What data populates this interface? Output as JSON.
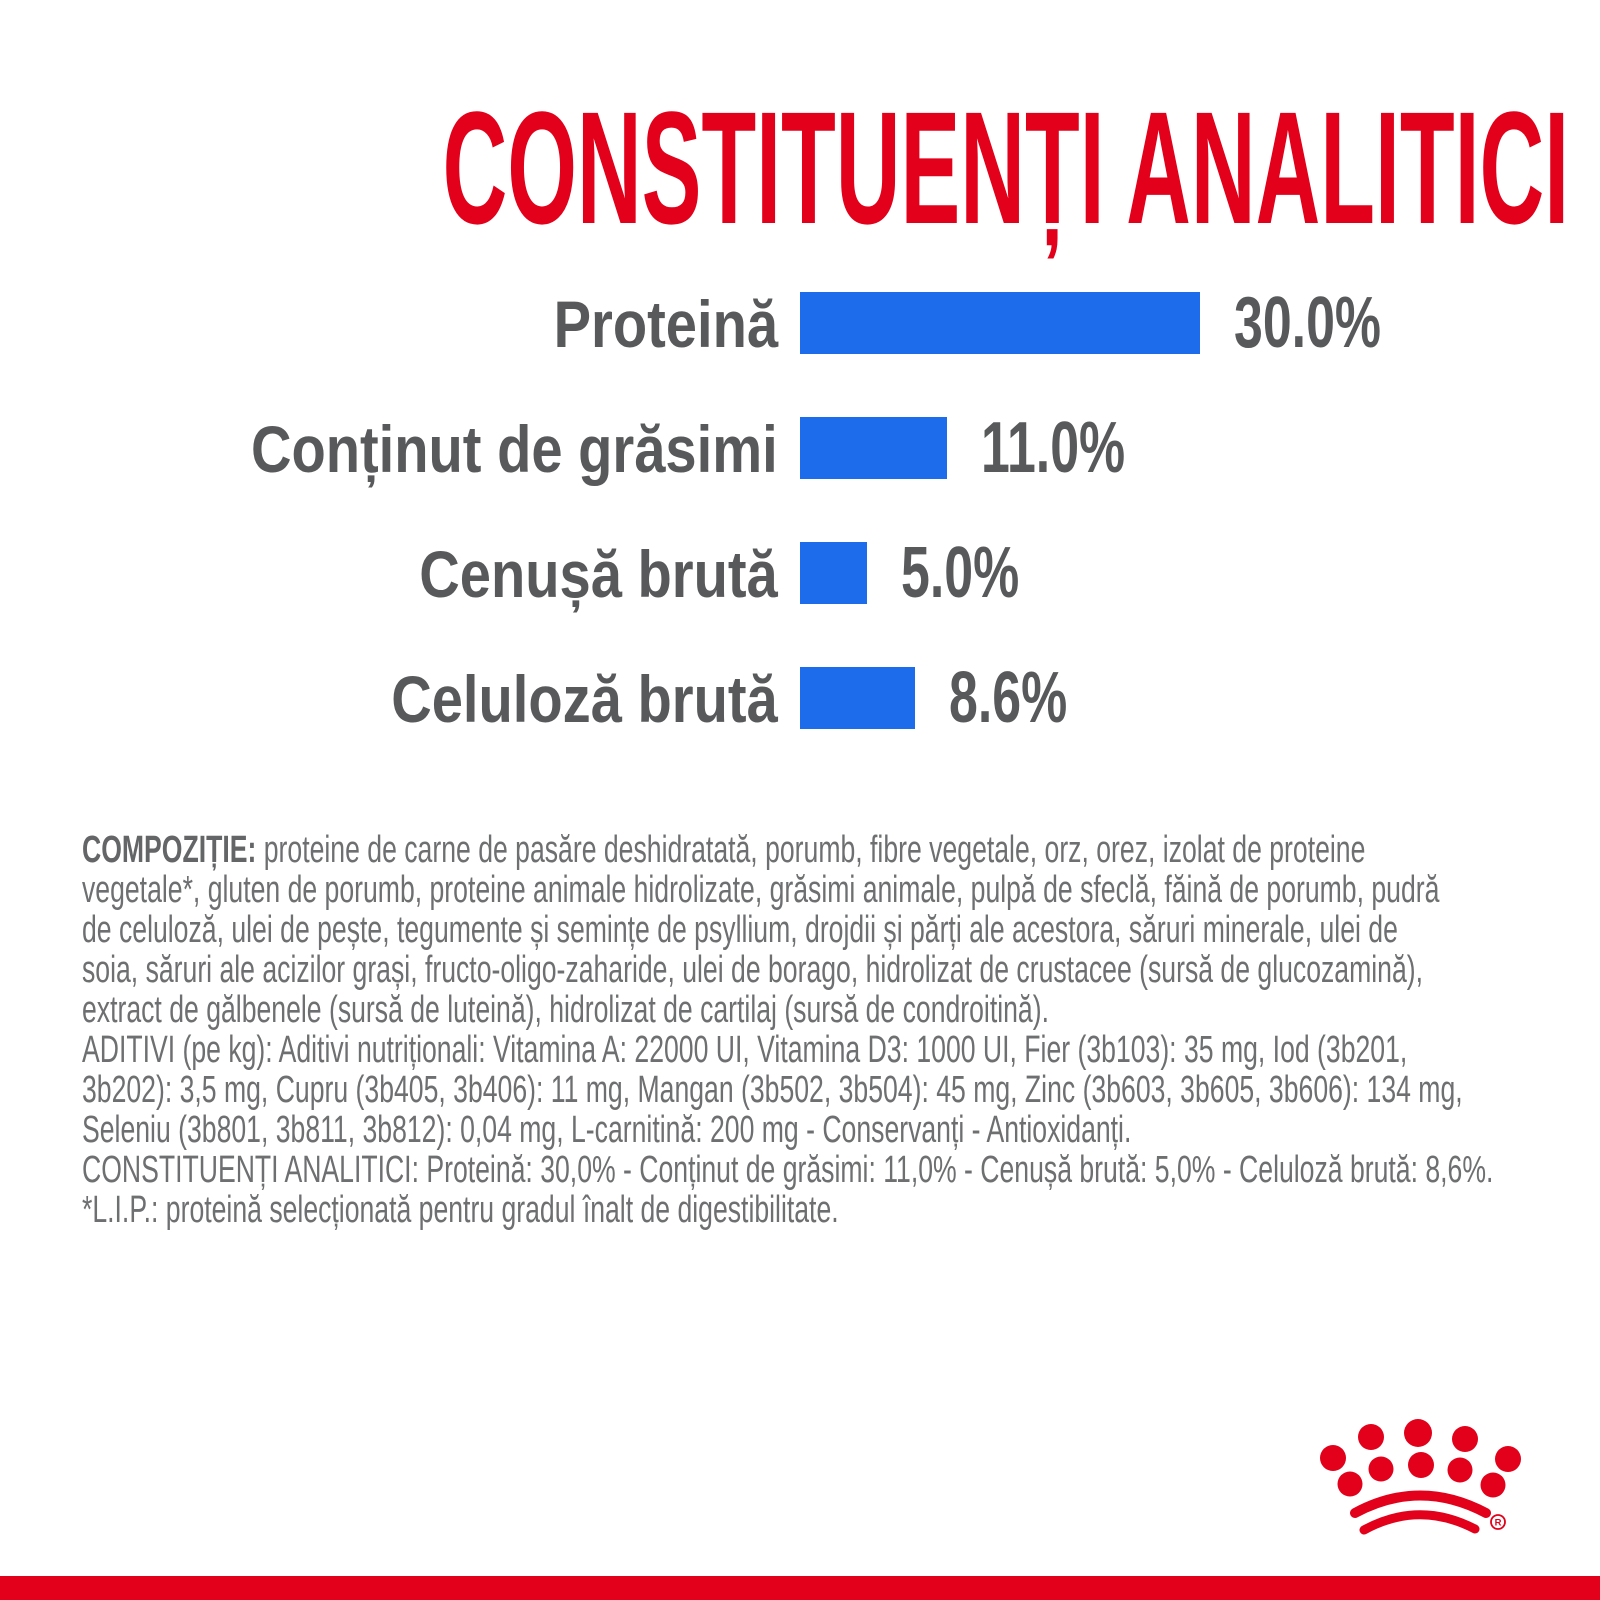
{
  "title": "CONSTITUENȚI ANALITICI",
  "colors": {
    "red": "#e2001a",
    "blue": "#1d6ceb",
    "label_gray": "#58595b",
    "body_gray": "#6e6f71"
  },
  "chart_data": {
    "type": "bar",
    "orientation": "horizontal",
    "title": "CONSTITUENȚI ANALITICI",
    "categories": [
      "Proteină",
      "Conținut de grăsimi",
      "Cenușă brută",
      "Celuloză brută"
    ],
    "values": [
      30.0,
      11.0,
      5.0,
      8.6
    ],
    "value_labels": [
      "30.0%",
      "11.0%",
      "5.0%",
      "8.6%"
    ],
    "unit": "%",
    "xlim": [
      0,
      30
    ],
    "bar_color": "#1d6ceb",
    "grid": false,
    "legend": false
  },
  "body": {
    "compozitie_label": "COMPOZIȚIE:",
    "line1_rest": " proteine de carne de pasăre deshidratată, porumb, fibre vegetale, orz, orez, izolat de proteine",
    "lines": [
      "vegetale*, gluten de porumb, proteine animale hidrolizate, grăsimi animale, pulpă de sfeclă, făină de porumb, pudră",
      "de celuloză, ulei de pește, tegumente și semințe de psyllium, drojdii și părți ale acestora, săruri minerale, ulei de",
      "soia, săruri ale acizilor grași, fructo-oligo-zaharide, ulei de borago, hidrolizat de crustacee (sursă de glucozamină),",
      "extract de gălbenele (sursă de luteină), hidrolizat de cartilaj (sursă de condroitină).",
      "ADITIVI (pe kg): Aditivi nutriționali: Vitamina A: 22000 UI, Vitamina D3: 1000 UI, Fier (3b103): 35 mg, Iod (3b201,",
      "3b202): 3,5 mg, Cupru (3b405, 3b406): 11 mg, Mangan (3b502, 3b504): 45 mg, Zinc (3b603, 3b605, 3b606): 134 mg,",
      "Seleniu (3b801, 3b811, 3b812): 0,04 mg, L-carnitină: 200 mg - Conservanți - Antioxidanți.",
      "CONSTITUENȚI ANALITICI: Proteină: 30,0% - Conținut de grăsimi: 11,0% - Cenușă brută: 5,0% - Celuloză brută: 8,6%.",
      "*L.I.P.: proteină selecționată pentru gradul înalt de digestibilitate."
    ]
  },
  "logo": {
    "name": "royal-canin-crown",
    "registered_mark": "®"
  }
}
